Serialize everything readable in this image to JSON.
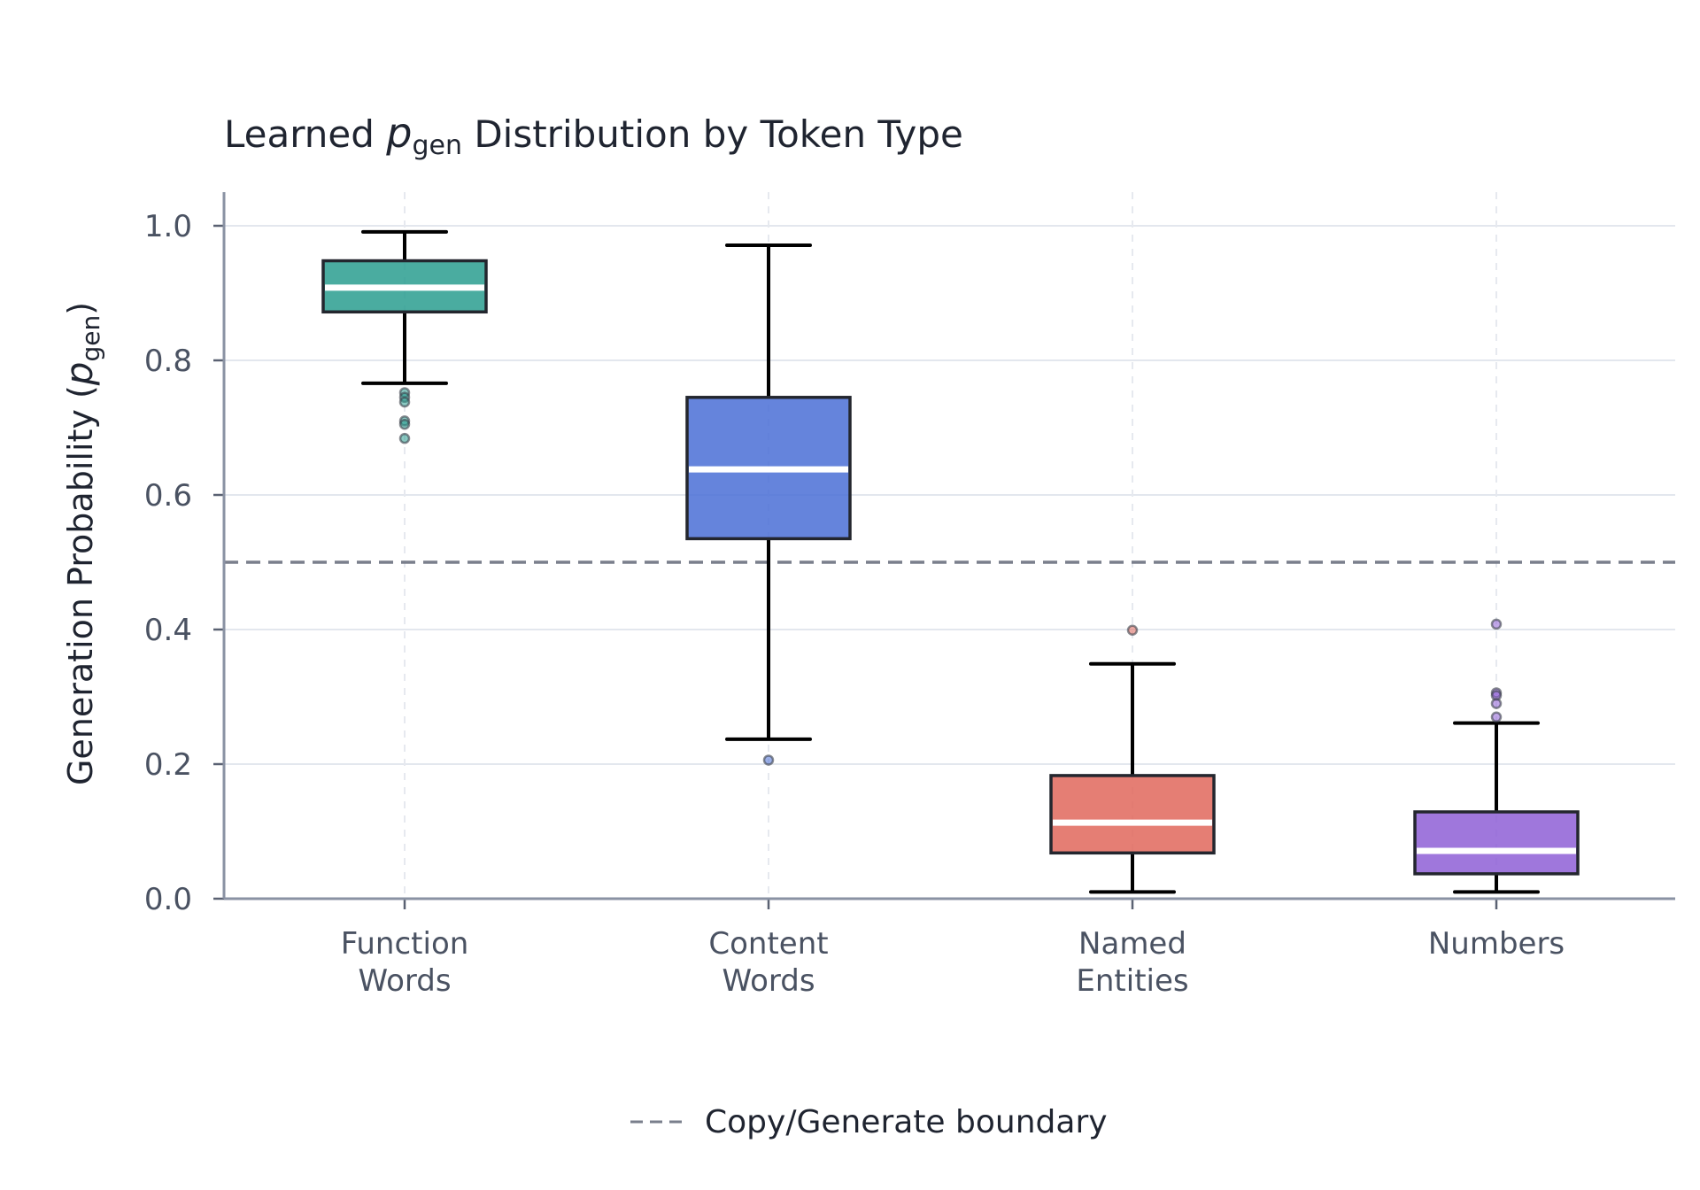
{
  "chart_data": {
    "type": "box",
    "title": {
      "prefix": "Learned ",
      "symbol": "p",
      "subscript": "gen",
      "suffix": " Distribution by Token Type"
    },
    "ylabel": {
      "prefix": "Generation Probability (",
      "symbol": "p",
      "subscript": "gen",
      "suffix": ")"
    },
    "xlabel": "",
    "ylim": [
      0.0,
      1.0
    ],
    "yticks": [
      0.0,
      0.2,
      0.4,
      0.6,
      0.8,
      1.0
    ],
    "ytick_labels": [
      "0.0",
      "0.2",
      "0.4",
      "0.6",
      "0.8",
      "1.0"
    ],
    "grid": true,
    "categories": [
      {
        "label_lines": [
          "Function",
          "Words"
        ],
        "color": "#2a9d8f",
        "whisker_low": 0.766,
        "q1": 0.872,
        "median": 0.908,
        "q3": 0.948,
        "whisker_high": 0.991,
        "outliers": [
          0.752,
          0.745,
          0.738,
          0.71,
          0.705,
          0.684
        ]
      },
      {
        "label_lines": [
          "Content",
          "Words"
        ],
        "color": "#4a6fd6",
        "whisker_low": 0.237,
        "q1": 0.535,
        "median": 0.638,
        "q3": 0.745,
        "whisker_high": 0.971,
        "outliers": [
          0.206
        ]
      },
      {
        "label_lines": [
          "Named",
          "Entities"
        ],
        "color": "#e0675c",
        "whisker_low": 0.01,
        "q1": 0.068,
        "median": 0.113,
        "q3": 0.183,
        "whisker_high": 0.349,
        "outliers": [
          0.399
        ]
      },
      {
        "label_lines": [
          "Numbers"
        ],
        "color": "#8e5fd6",
        "whisker_low": 0.01,
        "q1": 0.037,
        "median": 0.071,
        "q3": 0.129,
        "whisker_high": 0.261,
        "outliers": [
          0.408,
          0.306,
          0.302,
          0.29,
          0.27
        ]
      }
    ],
    "reference_line": {
      "y": 0.5,
      "style": "dashed",
      "color": "#7a7f8c",
      "label": "Copy/Generate boundary"
    },
    "legend": {
      "placement": "bottom-center"
    }
  }
}
